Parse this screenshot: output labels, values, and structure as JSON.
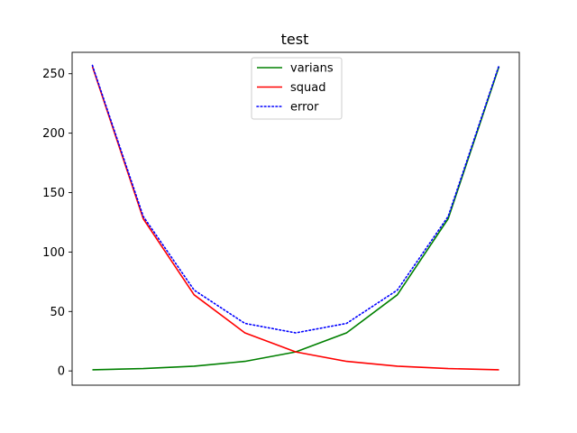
{
  "chart_data": {
    "type": "line",
    "title": "test",
    "xlabel": "",
    "ylabel": "",
    "x": [
      1,
      2,
      3,
      4,
      5,
      6,
      7,
      8,
      9
    ],
    "ylim": [
      -12,
      268
    ],
    "yticks": [
      0,
      50,
      100,
      150,
      200,
      250
    ],
    "grid": false,
    "legend_position": "top-center",
    "series": [
      {
        "name": "varians",
        "color": "#008000",
        "style": "solid",
        "values": [
          1,
          2,
          4,
          8,
          16,
          32,
          64,
          128,
          256
        ]
      },
      {
        "name": "squad",
        "color": "#ff0000",
        "style": "solid",
        "values": [
          256,
          128,
          64,
          32,
          16,
          8,
          4,
          2,
          1
        ]
      },
      {
        "name": "error",
        "color": "#0000ff",
        "style": "dotted",
        "values": [
          257,
          130,
          68,
          40,
          32,
          40,
          68,
          130,
          257
        ]
      }
    ]
  }
}
